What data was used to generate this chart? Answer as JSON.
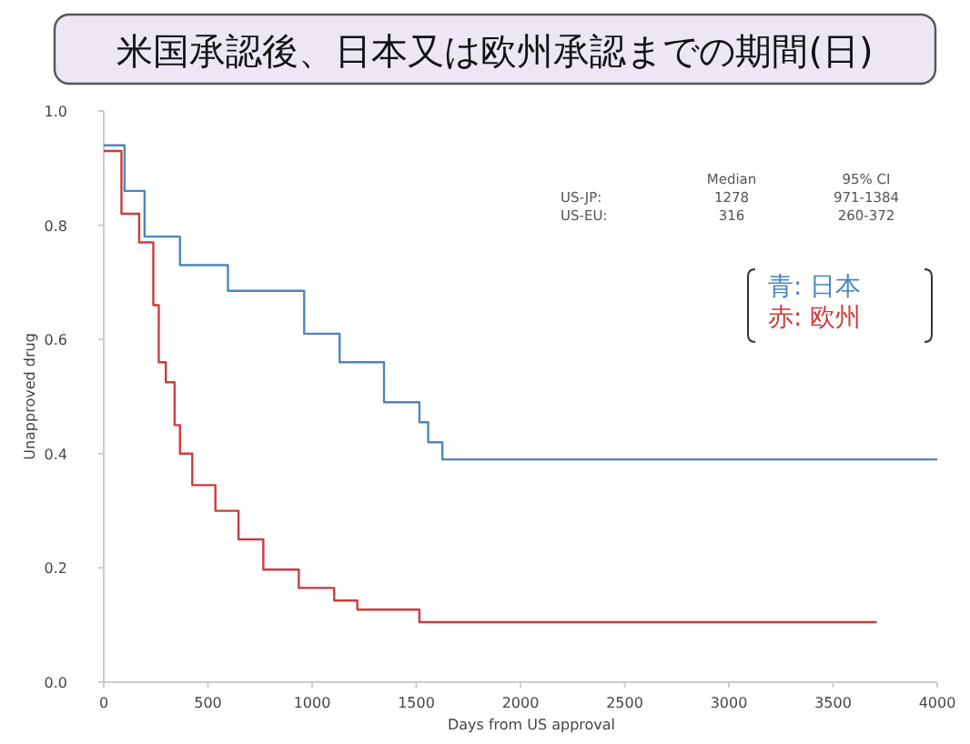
{
  "chart_data": {
    "type": "step",
    "title": "米国承認後、日本又は欧州承認までの期間(日)",
    "xlabel": "Days from US approval",
    "ylabel": "Unapproved drug",
    "xlim": [
      0,
      4000
    ],
    "ylim": [
      0,
      1
    ],
    "xticks": [
      0,
      500,
      1000,
      1500,
      2000,
      2500,
      3000,
      3500,
      4000
    ],
    "yticks": [
      {
        "value": 0,
        "label": "0.0"
      },
      {
        "value": 0.2,
        "label": "0.2"
      },
      {
        "value": 0.4,
        "label": "0.4"
      },
      {
        "value": 0.6,
        "label": "0.6"
      },
      {
        "value": 0.8,
        "label": "0.8"
      },
      {
        "value": 1,
        "label": "1.0"
      }
    ],
    "legend": "top right",
    "grid": false,
    "annotations": [
      "Median",
      "95% CI",
      "US-JP:",
      "1278",
      "971-1384",
      "US-EU:",
      "316",
      "260-372"
    ],
    "series": [
      {
        "name": "青: 日本",
        "color": "#4a86c0",
        "x": [
          0,
          100,
          196,
          366,
          596,
          962,
          1132,
          1345,
          1515,
          1557,
          1625,
          4000
        ],
        "values": [
          0.94,
          0.86,
          0.78,
          0.73,
          0.685,
          0.61,
          0.56,
          0.49,
          0.455,
          0.42,
          0.39,
          0.39
        ]
      },
      {
        "name": "赤: 欧州",
        "color": "#cc3b3b",
        "x": [
          0,
          85,
          170,
          238,
          264,
          298,
          340,
          366,
          425,
          536,
          647,
          766,
          936,
          1106,
          1217,
          1515,
          3710
        ],
        "values": [
          0.93,
          0.82,
          0.77,
          0.66,
          0.56,
          0.525,
          0.45,
          0.4,
          0.345,
          0.3,
          0.25,
          0.197,
          0.165,
          0.143,
          0.127,
          0.105,
          0.105
        ]
      }
    ]
  }
}
